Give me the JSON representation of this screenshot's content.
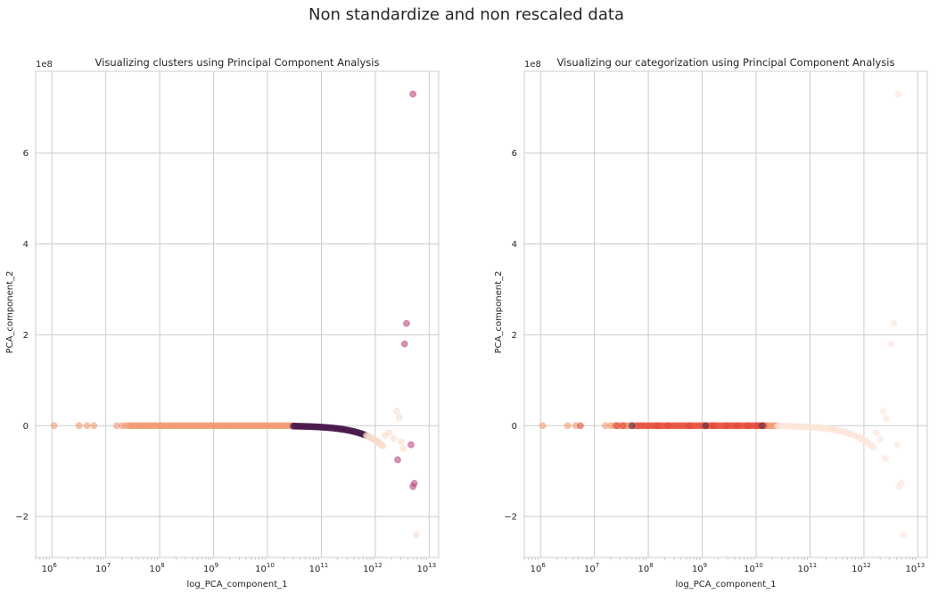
{
  "figure": {
    "suptitle": "Non standardize and non rescaled data"
  },
  "chart_data": [
    {
      "type": "scatter",
      "title": "Visualizing clusters using Principal Component Analysis",
      "xlabel": "log_PCA_component_1",
      "ylabel": "PCA_component_2",
      "x_scale": "log",
      "y_offset_label": "1e8",
      "xlim": [
        500000.0,
        15000000000000.0
      ],
      "ylim": [
        -290000000.0,
        780000000.0
      ],
      "x_ticks": [
        1000000.0,
        10000000.0,
        100000000.0,
        1000000000.0,
        10000000000.0,
        100000000000.0,
        1000000000000.0,
        10000000000000.0
      ],
      "y_ticks": [
        -2,
        0,
        2,
        4,
        6
      ],
      "y_tick_scale": 100000000.0,
      "grid": true,
      "legend": "none",
      "colors": {
        "salmon": "#f19a72",
        "dark": "#4a1a4c",
        "pink": "#b8477c",
        "pale": "#f6dccc"
      },
      "series": [
        {
          "color": "salmon",
          "points": [
            [
              1100000.0,
              0
            ],
            [
              3200000.0,
              0
            ],
            [
              4500000.0,
              0
            ],
            [
              6000000.0,
              0
            ],
            [
              16000000.0,
              0
            ],
            [
              20000000.0,
              0
            ],
            [
              23000000.0,
              0
            ]
          ],
          "band": {
            "from": 26000000.0,
            "to": 30000000000.0,
            "count": 130,
            "y": 0,
            "alpha": 0.45
          }
        },
        {
          "color": "dark",
          "points": [],
          "band": {
            "from": 30000000000.0,
            "to": 680000000000.0,
            "count": 60,
            "curve": true,
            "alpha": 0.6
          }
        },
        {
          "color": "pink",
          "points": [
            [
              5000000000000.0,
              730000000.0
            ],
            [
              3800000000000.0,
              225000000.0
            ],
            [
              3500000000000.0,
              180000000.0
            ],
            [
              4600000000000.0,
              -42000000.0
            ],
            [
              2600000000000.0,
              -75000000.0
            ],
            [
              5300000000000.0,
              -127000000.0
            ],
            [
              5000000000000.0,
              -134000000.0
            ]
          ]
        },
        {
          "color": "pale",
          "points": [
            [
              2500000000000.0,
              32000000.0
            ],
            [
              2800000000000.0,
              18000000.0
            ],
            [
              1800000000000.0,
              -15000000.0
            ],
            [
              2200000000000.0,
              -28000000.0
            ],
            [
              3000000000000.0,
              -35000000.0
            ],
            [
              3300000000000.0,
              -50000000.0
            ],
            [
              1500000000000.0,
              -22000000.0
            ],
            [
              5800000000000.0,
              -240000000.0
            ]
          ],
          "band": {
            "from": 680000000000.0,
            "to": 1400000000000.0,
            "count": 18,
            "curve": true,
            "alpha": 0.5
          }
        }
      ]
    },
    {
      "type": "scatter",
      "title": "Visualizing our categorization using Principal Component Analysis",
      "xlabel": "log_PCA_component_1",
      "ylabel": "PCA_component_2",
      "x_scale": "log",
      "y_offset_label": "1e8",
      "xlim": [
        500000.0,
        15000000000000.0
      ],
      "ylim": [
        -290000000.0,
        780000000.0
      ],
      "x_ticks": [
        1000000.0,
        10000000.0,
        100000000.0,
        1000000000.0,
        10000000000.0,
        100000000000.0,
        1000000000000.0,
        10000000000000.0
      ],
      "y_ticks": [
        -2,
        0,
        2,
        4,
        6
      ],
      "y_tick_scale": 100000000.0,
      "grid": true,
      "legend": "none",
      "colors": {
        "salmon": "#f19a72",
        "red": "#e34a3d",
        "dark": "#5a2a4a",
        "pale": "#fbe5d8"
      },
      "series": [
        {
          "color": "salmon",
          "points": [
            [
              1100000.0,
              0
            ],
            [
              3200000.0,
              0
            ],
            [
              4500000.0,
              0
            ],
            [
              16000000.0,
              0
            ],
            [
              20000000.0,
              0
            ]
          ],
          "band": {
            "from": 23000000.0,
            "to": 25000000000.0,
            "count": 120,
            "y": 0,
            "alpha": 0.45
          }
        },
        {
          "color": "red",
          "points": [
            [
              5500000.0,
              0
            ],
            [
              26000000.0,
              0
            ],
            [
              34000000.0,
              0
            ],
            [
              150000000.0,
              0
            ],
            [
              230000000.0,
              0
            ],
            [
              580000000.0,
              0
            ],
            [
              1600000000.0,
              0
            ],
            [
              2800000000.0,
              0
            ],
            [
              4400000000.0,
              0
            ],
            [
              7000000000.0,
              0
            ],
            [
              10500000000.0,
              0
            ]
          ],
          "band": {
            "from": 60000000.0,
            "to": 14000000000.0,
            "count": 45,
            "y": 0,
            "alpha": 0.55
          }
        },
        {
          "color": "dark",
          "points": [
            [
              50000000.0,
              0
            ],
            [
              1150000000.0,
              0
            ],
            [
              13000000000.0,
              0
            ]
          ]
        },
        {
          "color": "pale",
          "points": [
            [
              4400000000000.0,
              730000000.0
            ],
            [
              3600000000000.0,
              225000000.0
            ],
            [
              3200000000000.0,
              180000000.0
            ],
            [
              2300000000000.0,
              32000000.0
            ],
            [
              2600000000000.0,
              15000000.0
            ],
            [
              4200000000000.0,
              -42000000.0
            ],
            [
              2500000000000.0,
              -72000000.0
            ],
            [
              4900000000000.0,
              -127000000.0
            ],
            [
              4500000000000.0,
              -134000000.0
            ],
            [
              5300000000000.0,
              -240000000.0
            ],
            [
              1700000000000.0,
              -15000000.0
            ],
            [
              2000000000000.0,
              -30000000.0
            ]
          ],
          "band": {
            "from": 25000000000.0,
            "to": 1500000000000.0,
            "count": 55,
            "curve": true,
            "alpha": 0.55
          }
        }
      ]
    }
  ]
}
